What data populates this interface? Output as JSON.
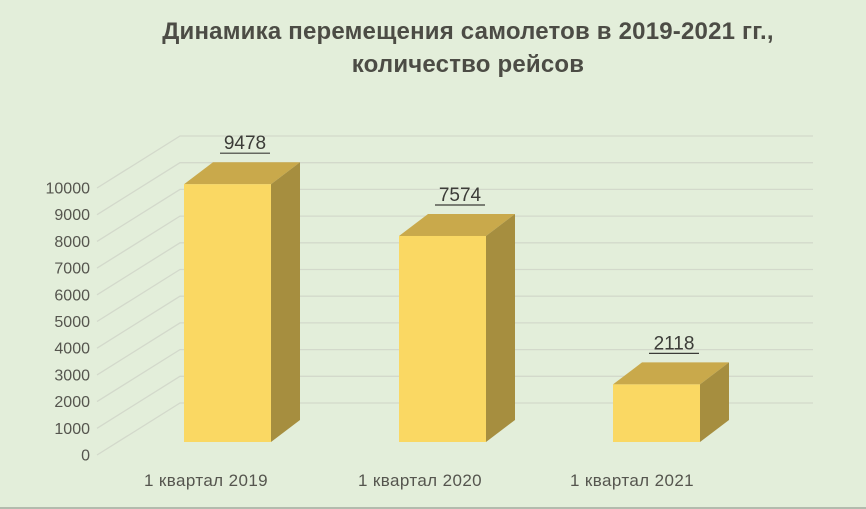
{
  "chart_data": {
    "type": "bar",
    "effect": "3d-column",
    "title": "Динамика перемещения самолетов в 2019-2021 гг., количество рейсов",
    "title_lines": [
      "Динамика перемещения самолетов в 2019-2021 гг.,",
      "количество рейсов"
    ],
    "categories": [
      "1 квартал 2019",
      "1 квартал 2020",
      "1 квартал 2021"
    ],
    "values": [
      9478,
      7574,
      2118
    ],
    "data_labels": [
      "9478",
      "7574",
      "2118"
    ],
    "xlabel": "",
    "ylabel": "",
    "y_ticks": [
      0,
      1000,
      2000,
      3000,
      4000,
      5000,
      6000,
      7000,
      8000,
      9000,
      10000
    ],
    "ylim": [
      0,
      10000
    ],
    "grid": true,
    "legend": false,
    "colors": {
      "background": "#e3eeda",
      "gridline": "#d3d9cb",
      "bar_front": "#fad863",
      "bar_top": "#c9a94b",
      "bar_side": "#a68e3f",
      "title_text": "#4c4c45",
      "axis_text": "#55554e",
      "data_label_text": "#3c3c38"
    }
  }
}
